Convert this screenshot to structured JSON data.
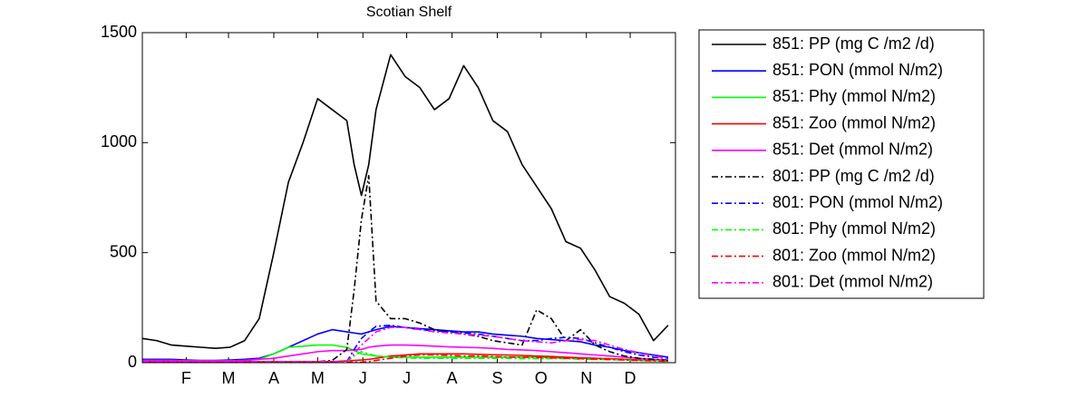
{
  "chart_data": {
    "type": "line",
    "title": "Scotian Shelf",
    "x": [
      0,
      10,
      20,
      30,
      40,
      50,
      60,
      70,
      80,
      90,
      100,
      110,
      120,
      130,
      140,
      145,
      150,
      155,
      160,
      170,
      180,
      190,
      200,
      210,
      220,
      230,
      240,
      250,
      260,
      270,
      280,
      290,
      300,
      310,
      320,
      330,
      340,
      350,
      360
    ],
    "xlim": [
      0,
      365
    ],
    "xticks": [
      {
        "value": 30,
        "label": "F"
      },
      {
        "value": 59,
        "label": "M"
      },
      {
        "value": 90,
        "label": "A"
      },
      {
        "value": 120,
        "label": "M"
      },
      {
        "value": 151,
        "label": "J"
      },
      {
        "value": 181,
        "label": "J"
      },
      {
        "value": 212,
        "label": "A"
      },
      {
        "value": 243,
        "label": "S"
      },
      {
        "value": 273,
        "label": "O"
      },
      {
        "value": 304,
        "label": "N"
      },
      {
        "value": 334,
        "label": "D"
      }
    ],
    "ylim": [
      0,
      1500
    ],
    "yticks": [
      0,
      500,
      1000,
      1500
    ],
    "legend": "outside-right",
    "series": [
      {
        "name": "851: PP (mg C /m2 /d)",
        "color": "#000000",
        "style": "solid",
        "values": [
          110,
          100,
          80,
          75,
          70,
          65,
          70,
          100,
          200,
          500,
          820,
          1000,
          1200,
          1150,
          1100,
          900,
          760,
          900,
          1150,
          1400,
          1300,
          1250,
          1150,
          1200,
          1350,
          1250,
          1100,
          1050,
          900,
          800,
          700,
          550,
          520,
          420,
          300,
          270,
          220,
          100,
          170
        ]
      },
      {
        "name": "851: PON (mmol N/m2)",
        "color": "#0000ff",
        "style": "solid",
        "values": [
          15,
          15,
          15,
          12,
          10,
          10,
          12,
          15,
          20,
          40,
          70,
          100,
          130,
          150,
          140,
          135,
          130,
          140,
          150,
          165,
          160,
          155,
          150,
          145,
          140,
          140,
          130,
          125,
          120,
          110,
          105,
          100,
          95,
          80,
          70,
          55,
          45,
          35,
          25
        ]
      },
      {
        "name": "851: Phy (mmol N/m2)",
        "color": "#00ff00",
        "style": "solid",
        "values": [
          10,
          10,
          10,
          8,
          8,
          8,
          8,
          10,
          15,
          40,
          70,
          75,
          80,
          80,
          70,
          55,
          40,
          35,
          30,
          25,
          25,
          25,
          25,
          25,
          25,
          25,
          25,
          25,
          25,
          25,
          22,
          22,
          20,
          20,
          18,
          15,
          12,
          10,
          8
        ]
      },
      {
        "name": "851: Zoo (mmol N/m2)",
        "color": "#ff0000",
        "style": "solid",
        "values": [
          5,
          5,
          5,
          5,
          5,
          5,
          5,
          5,
          5,
          5,
          5,
          5,
          5,
          5,
          8,
          10,
          12,
          15,
          20,
          30,
          35,
          40,
          40,
          40,
          40,
          38,
          36,
          35,
          33,
          30,
          28,
          25,
          22,
          20,
          18,
          15,
          12,
          10,
          8
        ]
      },
      {
        "name": "851: Det (mmol N/m2)",
        "color": "#ff00ff",
        "style": "solid",
        "values": [
          10,
          10,
          10,
          8,
          8,
          8,
          8,
          10,
          15,
          20,
          30,
          40,
          50,
          55,
          55,
          58,
          60,
          70,
          75,
          80,
          80,
          78,
          75,
          72,
          70,
          68,
          65,
          60,
          58,
          55,
          50,
          45,
          40,
          35,
          30,
          25,
          20,
          15,
          12
        ]
      },
      {
        "name": "801: PP (mg C /m2 /d)",
        "color": "#000000",
        "style": "dashdot",
        "values": [
          5,
          5,
          5,
          5,
          5,
          5,
          5,
          5,
          5,
          5,
          5,
          5,
          5,
          10,
          60,
          330,
          650,
          850,
          280,
          200,
          200,
          180,
          150,
          140,
          130,
          120,
          100,
          90,
          80,
          240,
          200,
          100,
          150,
          80,
          50,
          30,
          20,
          15,
          10
        ]
      },
      {
        "name": "801: PON (mmol N/m2)",
        "color": "#0000ff",
        "style": "dashdot",
        "values": [
          5,
          5,
          5,
          5,
          5,
          5,
          5,
          5,
          5,
          5,
          5,
          5,
          5,
          5,
          5,
          60,
          110,
          140,
          165,
          170,
          160,
          150,
          145,
          140,
          135,
          130,
          120,
          110,
          100,
          100,
          110,
          115,
          110,
          90,
          70,
          50,
          35,
          25,
          20
        ]
      },
      {
        "name": "801: Phy (mmol N/m2)",
        "color": "#00ff00",
        "style": "dashdot",
        "values": [
          3,
          3,
          3,
          3,
          3,
          3,
          3,
          3,
          3,
          3,
          3,
          3,
          3,
          3,
          3,
          30,
          50,
          40,
          30,
          25,
          22,
          20,
          20,
          20,
          20,
          20,
          20,
          20,
          18,
          18,
          18,
          18,
          16,
          15,
          14,
          12,
          10,
          10,
          8
        ]
      },
      {
        "name": "801: Zoo (mmol N/m2)",
        "color": "#ff0000",
        "style": "dashdot",
        "values": [
          2,
          2,
          2,
          2,
          2,
          2,
          2,
          2,
          2,
          2,
          2,
          2,
          2,
          2,
          2,
          2,
          2,
          5,
          10,
          20,
          30,
          35,
          35,
          33,
          30,
          30,
          28,
          26,
          25,
          24,
          22,
          20,
          18,
          16,
          14,
          12,
          10,
          8,
          6
        ]
      },
      {
        "name": "801: Det (mmol N/m2)",
        "color": "#ff00ff",
        "style": "dashdot",
        "values": [
          5,
          5,
          5,
          5,
          5,
          5,
          5,
          5,
          5,
          5,
          5,
          5,
          5,
          5,
          5,
          40,
          80,
          110,
          140,
          160,
          160,
          150,
          140,
          135,
          130,
          125,
          120,
          110,
          100,
          95,
          90,
          100,
          105,
          100,
          80,
          60,
          45,
          30,
          20
        ]
      }
    ]
  }
}
